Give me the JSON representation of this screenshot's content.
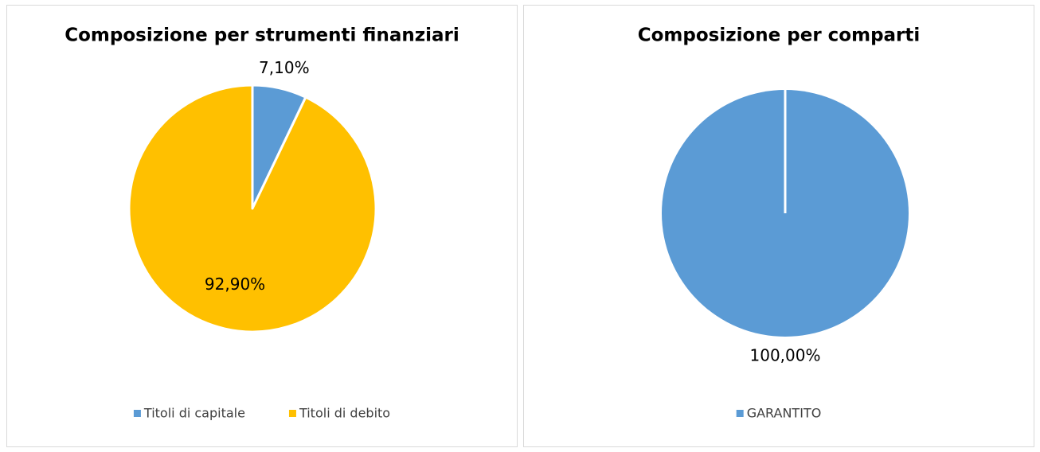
{
  "chart_data": [
    {
      "type": "pie",
      "title": "Composizione per strumenti finanziari",
      "categories": [
        "Titoli di capitale",
        "Titoli di debito"
      ],
      "values": [
        7.1,
        92.9
      ],
      "value_labels": [
        "7,10%",
        "92,90%"
      ],
      "colors": [
        "#5b9bd5",
        "#ffc000"
      ],
      "legend": "bottom"
    },
    {
      "type": "pie",
      "title": "Composizione per comparti",
      "categories": [
        "GARANTITO"
      ],
      "values": [
        100
      ],
      "value_labels": [
        "100,00%"
      ],
      "colors": [
        "#5b9bd5"
      ],
      "legend": "bottom"
    }
  ]
}
